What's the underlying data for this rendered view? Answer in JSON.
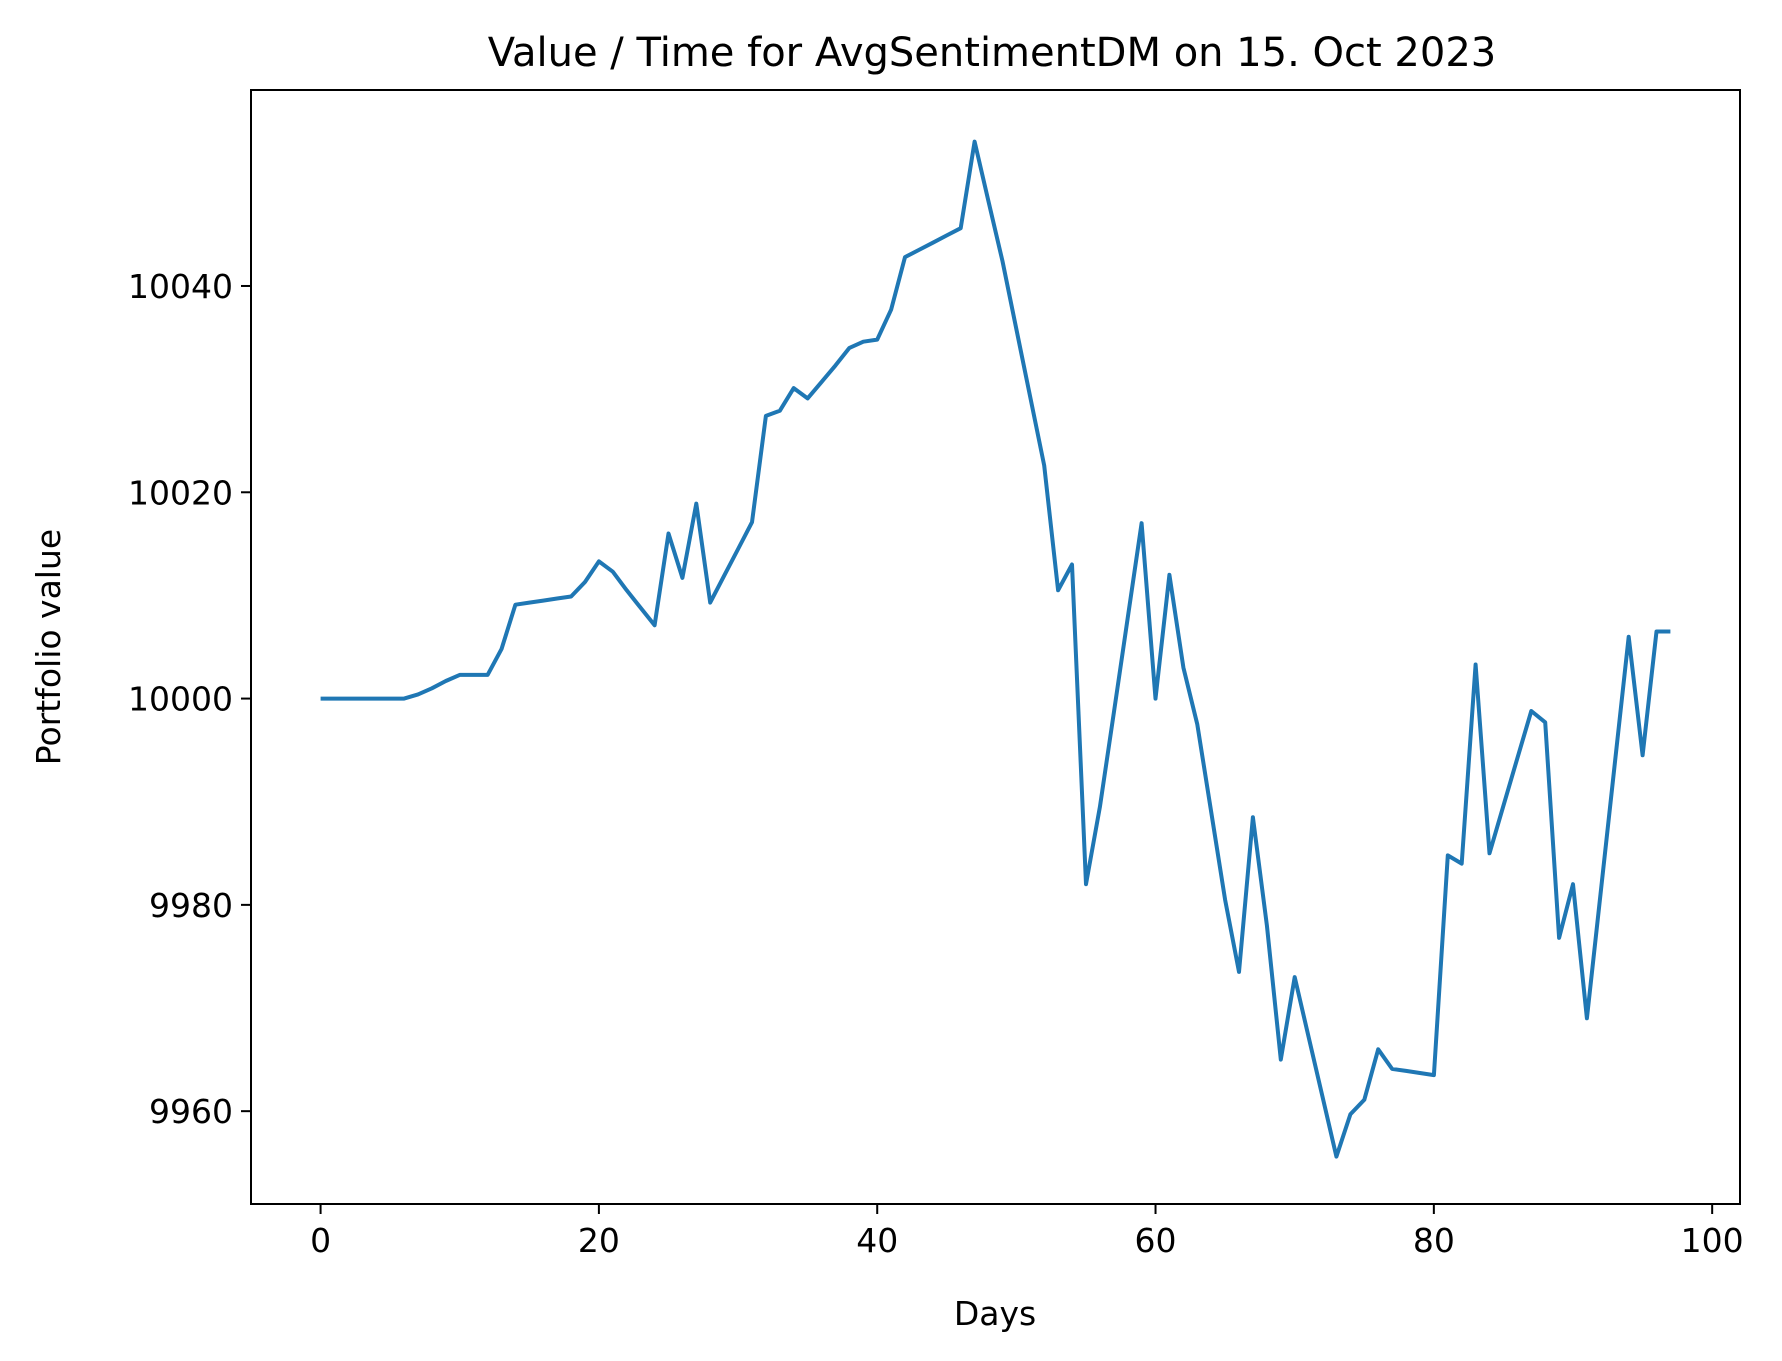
{
  "chart_data": {
    "type": "line",
    "title": "Value / Time for AvgSentimentDM on 15. Oct 2023",
    "xlabel": "Days",
    "ylabel": "Portfolio value",
    "xlim": [
      -5,
      102
    ],
    "ylim": [
      9951,
      10059
    ],
    "grid": false,
    "x_ticks": [
      0,
      20,
      40,
      60,
      80,
      100
    ],
    "y_ticks": [
      9960,
      9980,
      10000,
      10020,
      10040
    ],
    "series": [
      {
        "color": "#1f77b4",
        "x": [
          0,
          1,
          2,
          3,
          4,
          5,
          6,
          7,
          8,
          9,
          10,
          11,
          12,
          13,
          14,
          15,
          16,
          17,
          18,
          19,
          20,
          21,
          22,
          23,
          24,
          25,
          26,
          27,
          28,
          29,
          30,
          31,
          32,
          33,
          34,
          35,
          36,
          37,
          38,
          39,
          40,
          41,
          42,
          43,
          44,
          45,
          46,
          47,
          48,
          49,
          50,
          51,
          52,
          53,
          54,
          55,
          56,
          57,
          58,
          59,
          60,
          61,
          62,
          63,
          64,
          65,
          66,
          67,
          68,
          69,
          70,
          71,
          72,
          73,
          74,
          75,
          76,
          77,
          78,
          79,
          80,
          81,
          82,
          83,
          84,
          85,
          86,
          87,
          88,
          89,
          90,
          91,
          92,
          93,
          94,
          95,
          96,
          97
        ],
        "y": [
          10000,
          10000,
          10000,
          10000,
          10000,
          10000,
          10000,
          10000.4,
          10001,
          10001.7,
          10002.3,
          10002.3,
          10002.3,
          10004.8,
          10009.1,
          10009.3,
          10009.5,
          10009.7,
          10009.9,
          10011.3,
          10013.3,
          10012.3,
          10010.5,
          10008.8,
          10007.1,
          10016,
          10011.7,
          10018.9,
          10009.3,
          10011.9,
          10014.5,
          10017.1,
          10027.4,
          10027.9,
          10030.1,
          10029.1,
          10030.7,
          10032.3,
          10034,
          10034.6,
          10034.8,
          10037.7,
          10042.8,
          10043.5,
          10044.2,
          10044.9,
          10045.6,
          10054,
          10048.2,
          10042.4,
          10035.8,
          10029.2,
          10022.6,
          10010.5,
          10013,
          9982,
          9989.5,
          9998.6,
          10007.8,
          10017,
          10000,
          10012,
          10003,
          9997.5,
          9989,
          9980.5,
          9973.5,
          9988.5,
          9978,
          9965,
          9973,
          9967.2,
          9961.4,
          9955.6,
          9959.7,
          9961.1,
          9966,
          9964.1,
          9963.9,
          9963.7,
          9963.5,
          9984.8,
          9984,
          10003.3,
          9985,
          9989.6,
          9994.2,
          9998.8,
          9997.7,
          9976.8,
          9982,
          9969,
          9981.3,
          9993.7,
          10006,
          9994.5,
          10006.5,
          10006.5
        ]
      }
    ]
  }
}
